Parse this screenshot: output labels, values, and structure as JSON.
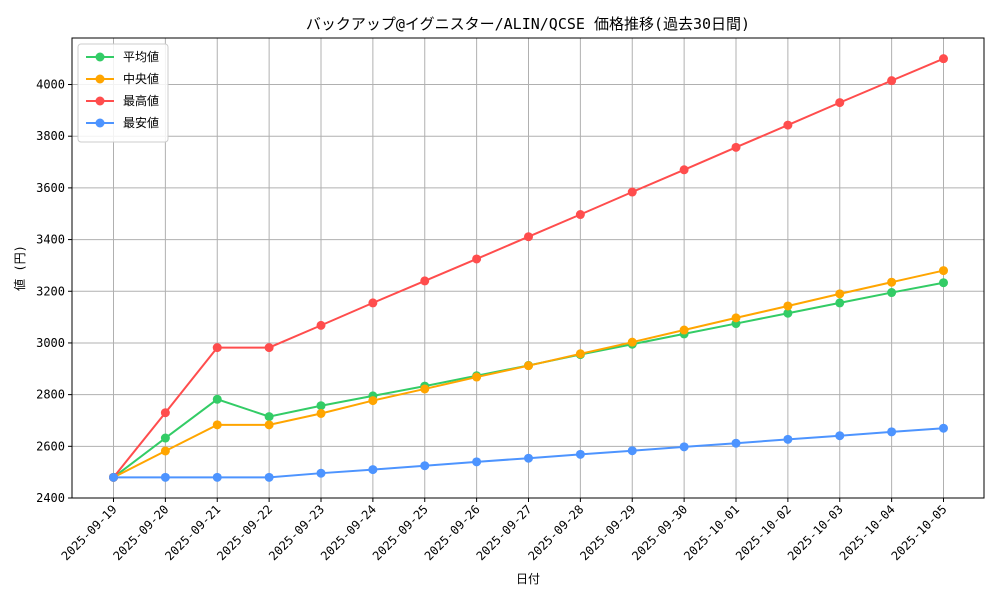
{
  "chart_data": {
    "type": "line",
    "title": "バックアップ@イグニスター/ALIN/QCSE 価格推移(過去30日間)",
    "xlabel": "日付",
    "ylabel": "値 (円)",
    "ylim": [
      2400,
      4180
    ],
    "yticks": [
      2400,
      2600,
      2800,
      3000,
      3200,
      3400,
      3600,
      3800,
      4000
    ],
    "grid": true,
    "legend_position": "top-left",
    "categories": [
      "2025-09-19",
      "2025-09-20",
      "2025-09-21",
      "2025-09-22",
      "2025-09-23",
      "2025-09-24",
      "2025-09-25",
      "2025-09-26",
      "2025-09-27",
      "2025-09-28",
      "2025-09-29",
      "2025-09-30",
      "2025-10-01",
      "2025-10-02",
      "2025-10-03",
      "2025-10-04",
      "2025-10-05"
    ],
    "series": [
      {
        "name": "平均値",
        "color": "#33cc66",
        "values": [
          2480,
          2632,
          2782,
          2715,
          2757,
          2795,
          2833,
          2873,
          2913,
          2955,
          2995,
          3035,
          3075,
          3115,
          3155,
          3195,
          3233
        ]
      },
      {
        "name": "中央値",
        "color": "#ffa500",
        "values": [
          2480,
          2582,
          2683,
          2683,
          2727,
          2777,
          2822,
          2868,
          2912,
          2958,
          3003,
          3050,
          3097,
          3143,
          3190,
          3235,
          3280
        ]
      },
      {
        "name": "最高値",
        "color": "#ff4d4d",
        "values": [
          2480,
          2730,
          2982,
          2982,
          3068,
          3155,
          3240,
          3325,
          3411,
          3497,
          3584,
          3670,
          3757,
          3843,
          3930,
          4015,
          4100
        ]
      },
      {
        "name": "最安値",
        "color": "#4d94ff",
        "values": [
          2480,
          2480,
          2480,
          2480,
          2496,
          2510,
          2525,
          2540,
          2554,
          2569,
          2583,
          2598,
          2612,
          2627,
          2641,
          2656,
          2670
        ]
      }
    ]
  }
}
